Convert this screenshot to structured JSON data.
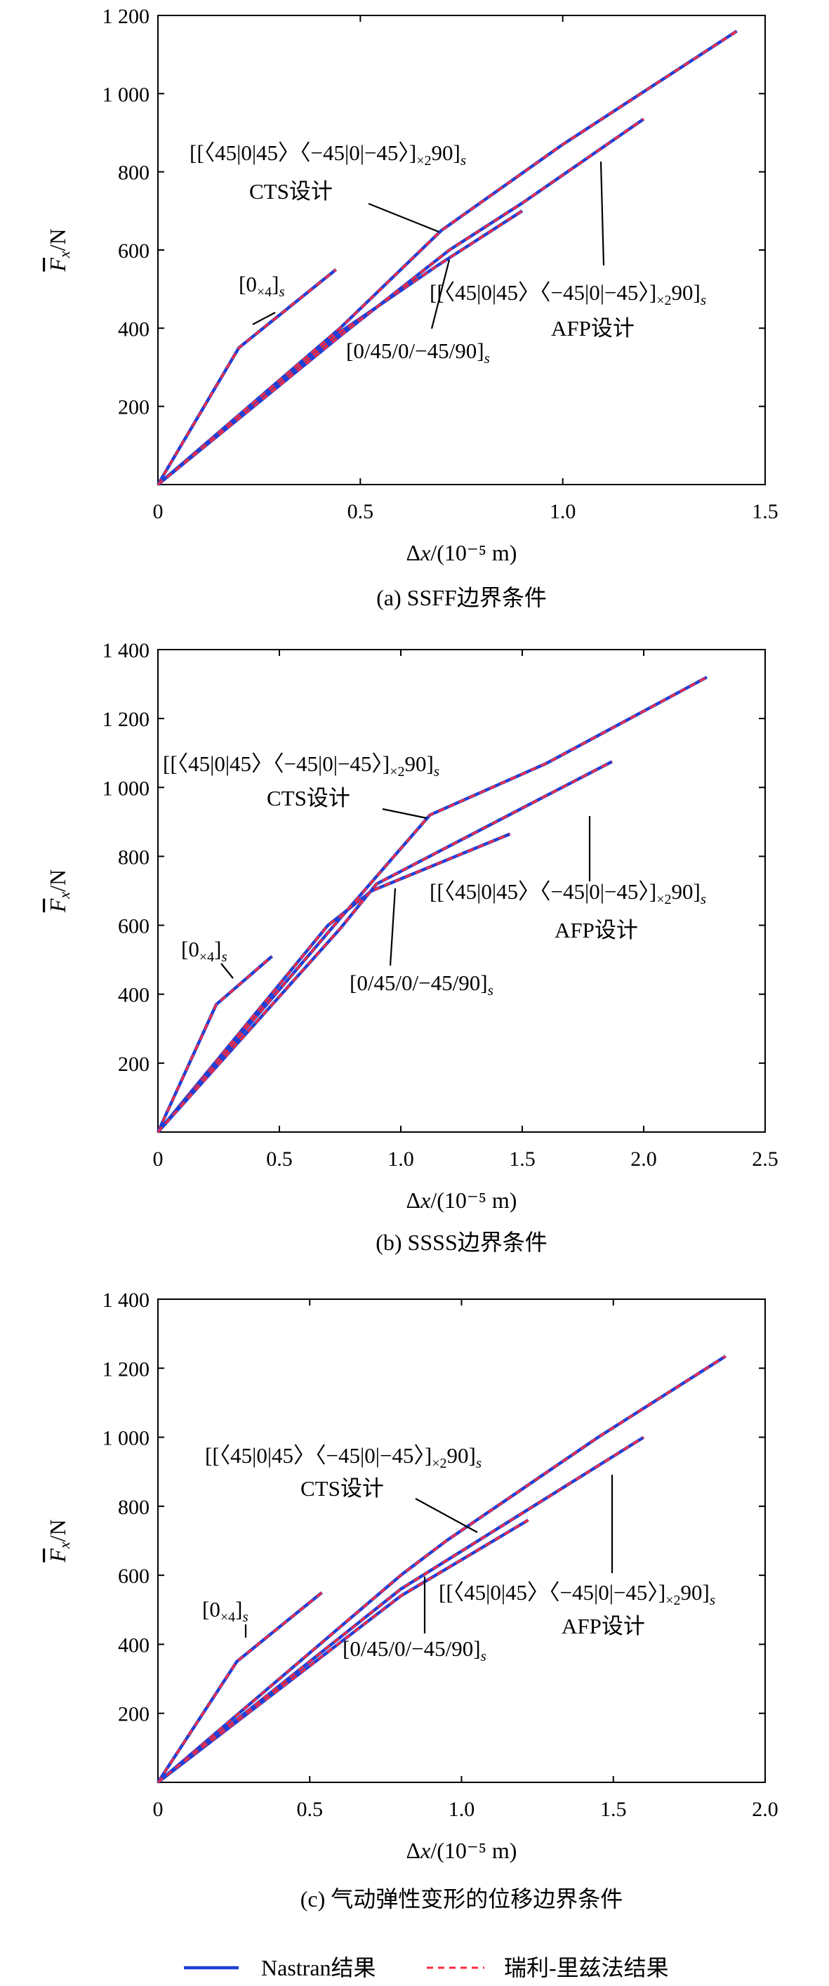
{
  "chart_data": [
    {
      "type": "line",
      "panel": "a",
      "caption": "(a) SSFF边界条件",
      "ylabel": "F_x/N",
      "xlabel": "Δx/(10⁻⁵ m)",
      "xlim": [
        0,
        1.5
      ],
      "ylim": [
        0,
        1200
      ],
      "x_ticks": [
        0,
        0.5,
        1.0,
        1.5
      ],
      "x_tick_labels": [
        "0",
        "0.5",
        "1.0",
        "1.5"
      ],
      "y_ticks": [
        200,
        400,
        600,
        800,
        1000,
        1200
      ],
      "y_tick_labels": [
        "200",
        "400",
        "600",
        "800",
        "1 000",
        "1 200"
      ],
      "grid": false,
      "series": [
        {
          "name": "[0×4]s",
          "points": [
            [
              0,
              0
            ],
            [
              0.2,
              350
            ],
            [
              0.44,
              550
            ]
          ]
        },
        {
          "name": "[0/45/0/−45/90]s",
          "points": [
            [
              0,
              0
            ],
            [
              0.45,
              390
            ],
            [
              0.69,
              560
            ],
            [
              0.9,
              700
            ]
          ]
        },
        {
          "name": "[[〈45|0|45〉〈−45|0|−45〉]×2 90]s CTS设计",
          "points": [
            [
              0,
              0
            ],
            [
              0.45,
              400
            ],
            [
              0.7,
              650
            ],
            [
              1.0,
              870
            ],
            [
              1.43,
              1160
            ]
          ]
        },
        {
          "name": "[[〈45|0|45〉〈−45|0|−45〉]×2 90]s AFP设计",
          "points": [
            [
              0,
              0
            ],
            [
              0.45,
              380
            ],
            [
              0.72,
              600
            ],
            [
              0.9,
              720
            ],
            [
              1.2,
              935
            ]
          ]
        }
      ],
      "annotations": [
        {
          "main": "[[〈45|0|45〉〈−45|0|−45〉]",
          "sub": "×2",
          "after": "90]",
          "suffix": "s",
          "line2": "CTS设计"
        },
        {
          "main": "[0",
          "sub": "×4",
          "after": "]",
          "suffix": "s"
        },
        {
          "main": "[[〈45|0|45〉〈−45|0|−45〉]",
          "sub": "×2",
          "after": "90]",
          "suffix": "s",
          "line2": "AFP设计"
        },
        {
          "main": "[0/45/0/−45/90]",
          "suffix": "s"
        }
      ]
    },
    {
      "type": "line",
      "panel": "b",
      "caption": "(b) SSSS边界条件",
      "ylabel": "F_x/N",
      "xlabel": "Δx/(10⁻⁵ m)",
      "xlim": [
        0,
        2.5
      ],
      "ylim": [
        0,
        1400
      ],
      "x_ticks": [
        0,
        0.5,
        1.0,
        1.5,
        2.0,
        2.5
      ],
      "x_tick_labels": [
        "0",
        "0.5",
        "1.0",
        "1.5",
        "2.0",
        "2.5"
      ],
      "y_ticks": [
        200,
        400,
        600,
        800,
        1000,
        1200,
        1400
      ],
      "y_tick_labels": [
        "200",
        "400",
        "600",
        "800",
        "1 000",
        "1 200",
        "1 400"
      ],
      "grid": false,
      "series": [
        {
          "name": "[0×4]s",
          "points": [
            [
              0,
              0
            ],
            [
              0.24,
              370
            ],
            [
              0.47,
              510
            ]
          ]
        },
        {
          "name": "[0/45/0/−45/90]s",
          "points": [
            [
              0,
              0
            ],
            [
              0.7,
              600
            ],
            [
              0.88,
              700
            ],
            [
              1.45,
              865
            ]
          ]
        },
        {
          "name": "[[〈45|0|45〉〈−45|0|−45〉]×2 90]s CTS设计",
          "points": [
            [
              0,
              0
            ],
            [
              0.75,
              620
            ],
            [
              1.12,
              920
            ],
            [
              1.6,
              1070
            ],
            [
              2.26,
              1320
            ]
          ]
        },
        {
          "name": "[[〈45|0|45〉〈−45|0|−45〉]×2 90]s AFP设计",
          "points": [
            [
              0,
              0
            ],
            [
              0.75,
              590
            ],
            [
              0.9,
              720
            ],
            [
              1.5,
              940
            ],
            [
              1.87,
              1075
            ]
          ]
        }
      ],
      "annotations": [
        {
          "main": "[[〈45|0|45〉〈−45|0|−45〉]",
          "sub": "×2",
          "after": "90]",
          "suffix": "s",
          "line2": "CTS设计"
        },
        {
          "main": "[0",
          "sub": "×4",
          "after": "]",
          "suffix": "s"
        },
        {
          "main": "[[〈45|0|45〉〈−45|0|−45〉]",
          "sub": "×2",
          "after": "90]",
          "suffix": "s",
          "line2": "AFP设计"
        },
        {
          "main": "[0/45/0/−45/90]",
          "suffix": "s"
        }
      ]
    },
    {
      "type": "line",
      "panel": "c",
      "caption": "(c) 气动弹性变形的位移边界条件",
      "ylabel": "F_x/N",
      "xlabel": "Δx/(10⁻⁵ m)",
      "xlim": [
        0,
        2.0
      ],
      "ylim": [
        0,
        1400
      ],
      "x_ticks": [
        0,
        0.5,
        1.0,
        1.5,
        2.0
      ],
      "x_tick_labels": [
        "0",
        "0.5",
        "1.0",
        "1.5",
        "2.0"
      ],
      "y_ticks": [
        200,
        400,
        600,
        800,
        1000,
        1200,
        1400
      ],
      "y_tick_labels": [
        "200",
        "400",
        "600",
        "800",
        "1 000",
        "1 200",
        "1 400"
      ],
      "grid": false,
      "series": [
        {
          "name": "[0×4]s",
          "points": [
            [
              0,
              0
            ],
            [
              0.26,
              350
            ],
            [
              0.54,
              550
            ]
          ]
        },
        {
          "name": "[0/45/0/−45/90]s",
          "points": [
            [
              0,
              0
            ],
            [
              0.8,
              540
            ],
            [
              1.22,
              760
            ]
          ]
        },
        {
          "name": "[[〈45|0|45〉〈−45|0|−45〉]×2 90]s CTS设计",
          "points": [
            [
              0,
              0
            ],
            [
              0.8,
              600
            ],
            [
              0.95,
              700
            ],
            [
              1.45,
              1000
            ],
            [
              1.87,
              1235
            ]
          ]
        },
        {
          "name": "[[〈45|0|45〉〈−45|0|−45〉]×2 90]s AFP设计",
          "points": [
            [
              0,
              0
            ],
            [
              0.8,
              560
            ],
            [
              1.2,
              780
            ],
            [
              1.6,
              1000
            ]
          ]
        }
      ],
      "annotations": [
        {
          "main": "[[〈45|0|45〉〈−45|0|−45〉]",
          "sub": "×2",
          "after": "90]",
          "suffix": "s",
          "line2": "CTS设计"
        },
        {
          "main": "[0",
          "sub": "×4",
          "after": "]",
          "suffix": "s"
        },
        {
          "main": "[[〈45|0|45〉〈−45|0|−45〉]",
          "sub": "×2",
          "after": "90]",
          "suffix": "s",
          "line2": "AFP设计"
        },
        {
          "main": "[0/45/0/−45/90]",
          "suffix": "s"
        }
      ]
    }
  ],
  "legend": {
    "placement": "bottom",
    "items": [
      {
        "label": "Nastran结果",
        "color": "#1f3fd6",
        "style": "solid"
      },
      {
        "label": "瑞利-里兹法结果",
        "color": "#ff2a3c",
        "style": "dashed"
      }
    ]
  },
  "colors": {
    "nastran": "#1f3fd6",
    "rayleigh_ritz": "#ff2a3c",
    "axes": "#000000"
  }
}
